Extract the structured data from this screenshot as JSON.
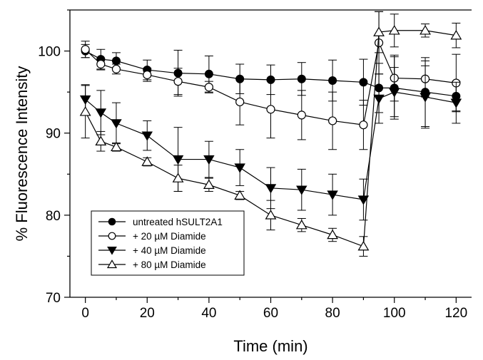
{
  "chart_data": {
    "type": "line",
    "title": "",
    "xlabel": "Time (min)",
    "ylabel": "% Fluorescence Intensity",
    "xlim": [
      -5,
      125
    ],
    "ylim": [
      70,
      105
    ],
    "x_ticks": [
      0,
      20,
      40,
      60,
      80,
      100,
      120
    ],
    "y_ticks": [
      70,
      80,
      90,
      100
    ],
    "grid": false,
    "legend_position": "bottom-left",
    "series": [
      {
        "name": "untreated hSULT2A1",
        "marker": "circle-filled",
        "color": "#000000",
        "x": [
          0,
          5,
          10,
          20,
          30,
          40,
          50,
          60,
          70,
          80,
          90,
          95,
          100,
          110,
          120
        ],
        "y": [
          100.0,
          99.0,
          98.8,
          97.7,
          97.3,
          97.2,
          96.6,
          96.5,
          96.6,
          96.4,
          96.2,
          95.5,
          95.5,
          95.0,
          94.5
        ],
        "err": [
          0.8,
          1.2,
          1.0,
          1.2,
          2.8,
          2.2,
          1.8,
          1.8,
          2.0,
          2.5,
          2.8,
          3.0,
          3.8,
          4.2,
          1.8
        ]
      },
      {
        "name": "+ 20 µM Diamide",
        "marker": "circle-open",
        "color": "#000000",
        "x": [
          0,
          5,
          10,
          20,
          30,
          40,
          50,
          60,
          70,
          80,
          90,
          95,
          100,
          110,
          120
        ],
        "y": [
          100.2,
          98.4,
          97.8,
          97.1,
          96.3,
          95.6,
          93.8,
          92.9,
          92.2,
          91.5,
          91.0,
          101.0,
          96.7,
          96.6,
          96.1
        ],
        "err": [
          1.0,
          0.7,
          0.6,
          0.8,
          1.6,
          0.7,
          2.8,
          3.5,
          3.0,
          3.5,
          3.0,
          3.8,
          2.8,
          2.2,
          3.5
        ]
      },
      {
        "name": "+ 40 µM Diamide",
        "marker": "triangle-down-filled",
        "color": "#000000",
        "x": [
          0,
          5,
          10,
          20,
          30,
          40,
          50,
          60,
          70,
          80,
          90,
          95,
          100,
          110,
          120
        ],
        "y": [
          94.1,
          92.5,
          91.2,
          89.7,
          86.8,
          86.8,
          85.8,
          83.3,
          83.1,
          82.5,
          81.9,
          94.2,
          95.0,
          94.4,
          93.7
        ],
        "err": [
          1.8,
          2.7,
          2.5,
          1.8,
          3.9,
          2.2,
          2.2,
          2.5,
          2.5,
          2.5,
          2.5,
          3.0,
          3.0,
          3.8,
          2.5
        ]
      },
      {
        "name": "+ 80 µM Diamide",
        "marker": "triangle-up-open",
        "color": "#000000",
        "x": [
          0,
          5,
          10,
          20,
          30,
          40,
          50,
          60,
          70,
          80,
          90,
          95,
          100,
          110,
          120
        ],
        "y": [
          92.6,
          89.0,
          88.3,
          86.5,
          84.5,
          83.7,
          82.4,
          80.0,
          78.8,
          77.6,
          76.2,
          102.3,
          102.5,
          102.5,
          101.9
        ],
        "err": [
          3.2,
          1.2,
          0.5,
          0.5,
          1.6,
          0.8,
          0.5,
          1.8,
          0.8,
          0.8,
          1.2,
          2.5,
          2.0,
          0.8,
          1.5
        ]
      }
    ]
  }
}
